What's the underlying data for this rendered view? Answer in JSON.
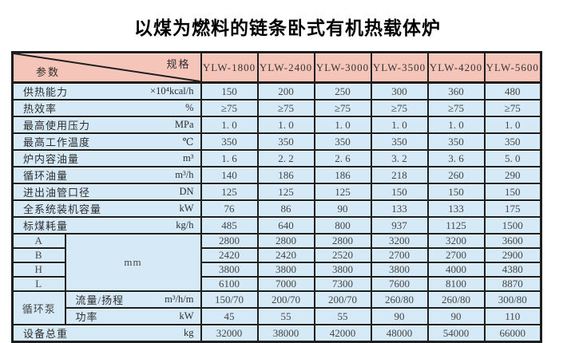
{
  "page": {
    "title": "以煤为燃料的链条卧式有机热载体炉"
  },
  "colors": {
    "header_bg": "#f6c5b9",
    "body_bg": "#d6e9f6",
    "border": "#1e1e1e"
  },
  "table": {
    "corner": {
      "top_right": "规格",
      "bottom_left": "参数"
    },
    "spec_columns": [
      "YLW-1800",
      "YLW-2400",
      "YLW-3000",
      "YLW-3500",
      "YLW-4200",
      "YLW-5600"
    ],
    "rows": [
      {
        "type": "simple",
        "label": "供热能力",
        "unit": "×10⁴kcal/h",
        "values": [
          "150",
          "200",
          "250",
          "300",
          "360",
          "480"
        ]
      },
      {
        "type": "simple",
        "label": "热效率",
        "unit": "%",
        "values": [
          "≥75",
          "≥75",
          "≥75",
          "≥75",
          "≥75",
          "≥75"
        ]
      },
      {
        "type": "simple",
        "label": "最高使用压力",
        "unit": "MPa",
        "values": [
          "1. 0",
          "1. 0",
          "1. 0",
          "1. 0",
          "1. 0",
          "1. 0"
        ]
      },
      {
        "type": "simple",
        "label": "最高工作温度",
        "unit": "℃",
        "values": [
          "350",
          "350",
          "350",
          "350",
          "350",
          "350"
        ]
      },
      {
        "type": "simple",
        "label": "炉内容油量",
        "unit": "m³",
        "values": [
          "1. 6",
          "2. 2",
          "2. 6",
          "3. 2",
          "3. 6",
          "5. 0"
        ]
      },
      {
        "type": "simple",
        "label": "循环油量",
        "unit": "m³/h",
        "values": [
          "140",
          "186",
          "186",
          "218",
          "260",
          "290"
        ]
      },
      {
        "type": "simple",
        "label": "进出油管口径",
        "unit": "DN",
        "values": [
          "125",
          "125",
          "125",
          "150",
          "150",
          "150"
        ]
      },
      {
        "type": "simple",
        "label": "全系统装机容量",
        "unit": "kW",
        "values": [
          "76",
          "86",
          "90",
          "133",
          "133",
          "175"
        ]
      },
      {
        "type": "simple",
        "label": "标煤耗量",
        "unit": "kg/h",
        "values": [
          "485",
          "640",
          "800",
          "937",
          "1125",
          "1500"
        ]
      },
      {
        "type": "dim",
        "label": "A",
        "group": {
          "label": "mm",
          "span": 4
        },
        "values": [
          "2800",
          "2800",
          "2800",
          "3200",
          "3200",
          "3600"
        ]
      },
      {
        "type": "dim",
        "label": "B",
        "values": [
          "2420",
          "2420",
          "2520",
          "2700",
          "2700",
          "2900"
        ]
      },
      {
        "type": "dim",
        "label": "H",
        "values": [
          "3800",
          "3800",
          "3800",
          "3800",
          "4000",
          "4380"
        ]
      },
      {
        "type": "dim",
        "label": "L",
        "values": [
          "6100",
          "7000",
          "7300",
          "7600",
          "8100",
          "8870"
        ]
      },
      {
        "type": "pump",
        "group": {
          "label": "循环泵",
          "span": 2
        },
        "label": "流量/扬程",
        "unit": "m³/h/m",
        "values": [
          "150/70",
          "200/70",
          "200/70",
          "260/80",
          "260/80",
          "300/80"
        ]
      },
      {
        "type": "pump",
        "label": "功率",
        "unit": "kW",
        "values": [
          "45",
          "55",
          "55",
          "90",
          "90",
          "110"
        ]
      },
      {
        "type": "simple",
        "label": "设备总重",
        "unit": "kg",
        "values": [
          "32000",
          "38000",
          "42000",
          "48000",
          "54000",
          "66000"
        ]
      }
    ]
  }
}
